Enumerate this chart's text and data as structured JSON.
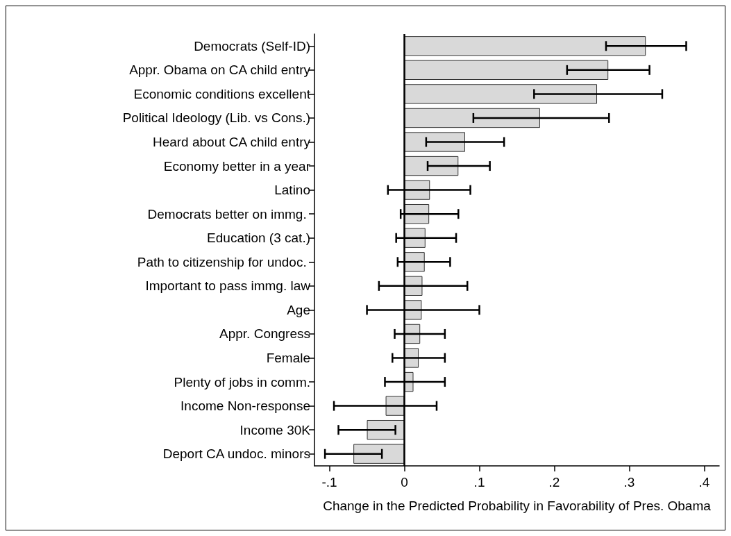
{
  "chart_data": {
    "type": "bar",
    "orientation": "horizontal",
    "xlabel": "Change in the Predicted Probability in Favorability of Pres. Obama",
    "categories": [
      "Democrats (Self-ID)",
      "Appr. Obama on CA child entry",
      "Economic conditions excellent",
      "Political Ideology (Lib. vs Cons.)",
      "Heard about CA child entry",
      "Economy better in a year",
      "Latino",
      "Democrats better on immg. ",
      "Education (3 cat.)",
      "Path to citizenship for undoc. ",
      "Important to pass immg. law",
      "Age",
      "Appr. Congress",
      "Female",
      "Plenty of jobs in comm.",
      "Income Non-response",
      "Income 30K",
      "Deport CA undoc. minors"
    ],
    "values": [
      0.322,
      0.272,
      0.257,
      0.181,
      0.081,
      0.072,
      0.034,
      0.033,
      0.028,
      0.027,
      0.024,
      0.023,
      0.021,
      0.019,
      0.012,
      -0.025,
      -0.05,
      -0.068
    ],
    "errors": [
      [
        0.269,
        0.376
      ],
      [
        0.217,
        0.327
      ],
      [
        0.173,
        0.344
      ],
      [
        0.092,
        0.273
      ],
      [
        0.029,
        0.133
      ],
      [
        0.031,
        0.114
      ],
      [
        -0.022,
        0.088
      ],
      [
        -0.005,
        0.072
      ],
      [
        -0.011,
        0.069
      ],
      [
        -0.009,
        0.061
      ],
      [
        -0.034,
        0.084
      ],
      [
        -0.05,
        0.1
      ],
      [
        -0.013,
        0.054
      ],
      [
        -0.016,
        0.054
      ],
      [
        -0.026,
        0.054
      ],
      [
        -0.094,
        0.043
      ],
      [
        -0.088,
        -0.012
      ],
      [
        -0.106,
        -0.03
      ]
    ],
    "color": "#d9d9d9",
    "xlim": [
      -0.12,
      0.42
    ],
    "xticks": [
      {
        "value": -0.1,
        "label": "-.1"
      },
      0,
      {
        "value": 0.1,
        "label": ".1"
      },
      {
        "value": 0.2,
        "label": ".2"
      },
      {
        "value": 0.3,
        "label": ".3"
      },
      {
        "value": 0.4,
        "label": ".4"
      }
    ],
    "ref_lines": [
      {
        "axis": "x",
        "value": 0
      }
    ],
    "grid": false
  }
}
